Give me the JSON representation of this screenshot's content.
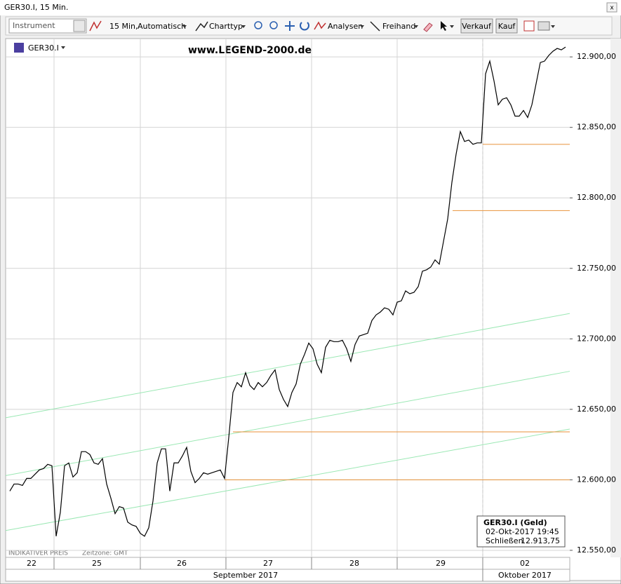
{
  "window": {
    "title": "GER30.I, 15 Min."
  },
  "toolbar": {
    "instrument": "Instrument",
    "interval": "15 Min,",
    "mode": "Automatisch",
    "chart_type": "Charttyp",
    "analysis": "Analysen",
    "freehand": "Freihand",
    "sell": "Verkauf",
    "buy": "Kauf"
  },
  "chart_data": {
    "type": "line",
    "instrument": "GER30.I",
    "watermark": "www.LEGEND-2000.de",
    "xlim": [
      -1,
      133
    ],
    "ylim": [
      12545,
      12913
    ],
    "yticks": [
      {
        "value": 12550,
        "label": "12.550,00"
      },
      {
        "value": 12600,
        "label": "12.600,00"
      },
      {
        "value": 12650,
        "label": "12.650,00"
      },
      {
        "value": 12700,
        "label": "12.700,00"
      },
      {
        "value": 12750,
        "label": "12.750,00"
      },
      {
        "value": 12800,
        "label": "12.800,00"
      },
      {
        "value": 12850,
        "label": "12.850,00"
      },
      {
        "value": 12900,
        "label": "12.900,00"
      }
    ],
    "xticks": [
      {
        "value": 5.17,
        "label": "22"
      },
      {
        "value": 20.67,
        "label": "25"
      },
      {
        "value": 40.83,
        "label": "26"
      },
      {
        "value": 61.33,
        "label": "27"
      },
      {
        "value": 81.83,
        "label": "28"
      },
      {
        "value": 102.33,
        "label": "29"
      },
      {
        "value": 122.33,
        "label": "02"
      }
    ],
    "xgrid": [
      10.5,
      31,
      51.33,
      71.67,
      92,
      112.33
    ],
    "months": [
      {
        "value": 56,
        "label": "September 2017"
      },
      {
        "value": 122.33,
        "label": "Oktober 2017"
      }
    ],
    "grid": true,
    "series": [
      {
        "name": "GER30.I",
        "color": "#000000",
        "values": [
          12592,
          12597,
          12597,
          12596,
          12601,
          12601,
          12604,
          12607,
          12608,
          12611,
          12610,
          12560,
          12577,
          12610,
          12612,
          12602,
          12605,
          12620,
          12620,
          12618,
          12612,
          12611,
          12615,
          12597,
          12587,
          12576,
          12581,
          12580,
          12570,
          12568,
          12567,
          12562,
          12560,
          12566,
          12585,
          12612,
          12622,
          12622,
          12592,
          12612,
          12612,
          12617,
          12623,
          12606,
          12598,
          12601,
          12605,
          12604,
          12605,
          12606,
          12607,
          12601,
          12630,
          12662,
          12669,
          12666,
          12676,
          12667,
          12664,
          12669,
          12666,
          12669,
          12674,
          12678,
          12664,
          12657,
          12652,
          12662,
          12668,
          12682,
          12689,
          12697,
          12693,
          12682,
          12676,
          12694,
          12699,
          12698,
          12698,
          12699,
          12693,
          12684,
          12696,
          12702,
          12703,
          12704,
          12713,
          12717,
          12719,
          12722,
          12721,
          12717,
          12726,
          12727,
          12734,
          12732,
          12733,
          12737,
          12748,
          12749,
          12751,
          12756,
          12753,
          12769,
          12785,
          12811,
          12831,
          12847,
          12840,
          12841,
          12838,
          12839,
          12839,
          12888,
          12897,
          12883,
          12866,
          12870,
          12871,
          12866,
          12858,
          12858,
          12862,
          12857,
          12866,
          12881,
          12896,
          12897,
          12901,
          12904,
          12906,
          12905,
          12907
        ]
      }
    ],
    "levels": [
      {
        "value": 12838,
        "from": 112.33,
        "color": "#e8923a"
      },
      {
        "value": 12791,
        "from": 105.17,
        "color": "#e8923a"
      },
      {
        "value": 12634,
        "from": 53,
        "color": "#e8923a"
      },
      {
        "value": 12600,
        "from": 51,
        "color": "#e8923a"
      }
    ],
    "trendlines": [
      {
        "x": [
          -1,
          133
        ],
        "values": [
          12644,
          12718
        ],
        "color": "#9be8b4"
      },
      {
        "x": [
          -1,
          133
        ],
        "values": [
          12603,
          12677
        ],
        "color": "#9be8b4"
      },
      {
        "x": [
          -1,
          133
        ],
        "values": [
          12564,
          12636
        ],
        "color": "#9be8b4"
      }
    ],
    "crosshair_x": 112.33
  },
  "info_box": {
    "title": "GER30.I (Geld)",
    "date": "02-Okt-2017 19:45",
    "label": "Schließen",
    "value": "12.913,75"
  },
  "footer": {
    "price_note": "INDIKATIVER PREIS",
    "timezone": "Zeitzone: GMT"
  }
}
